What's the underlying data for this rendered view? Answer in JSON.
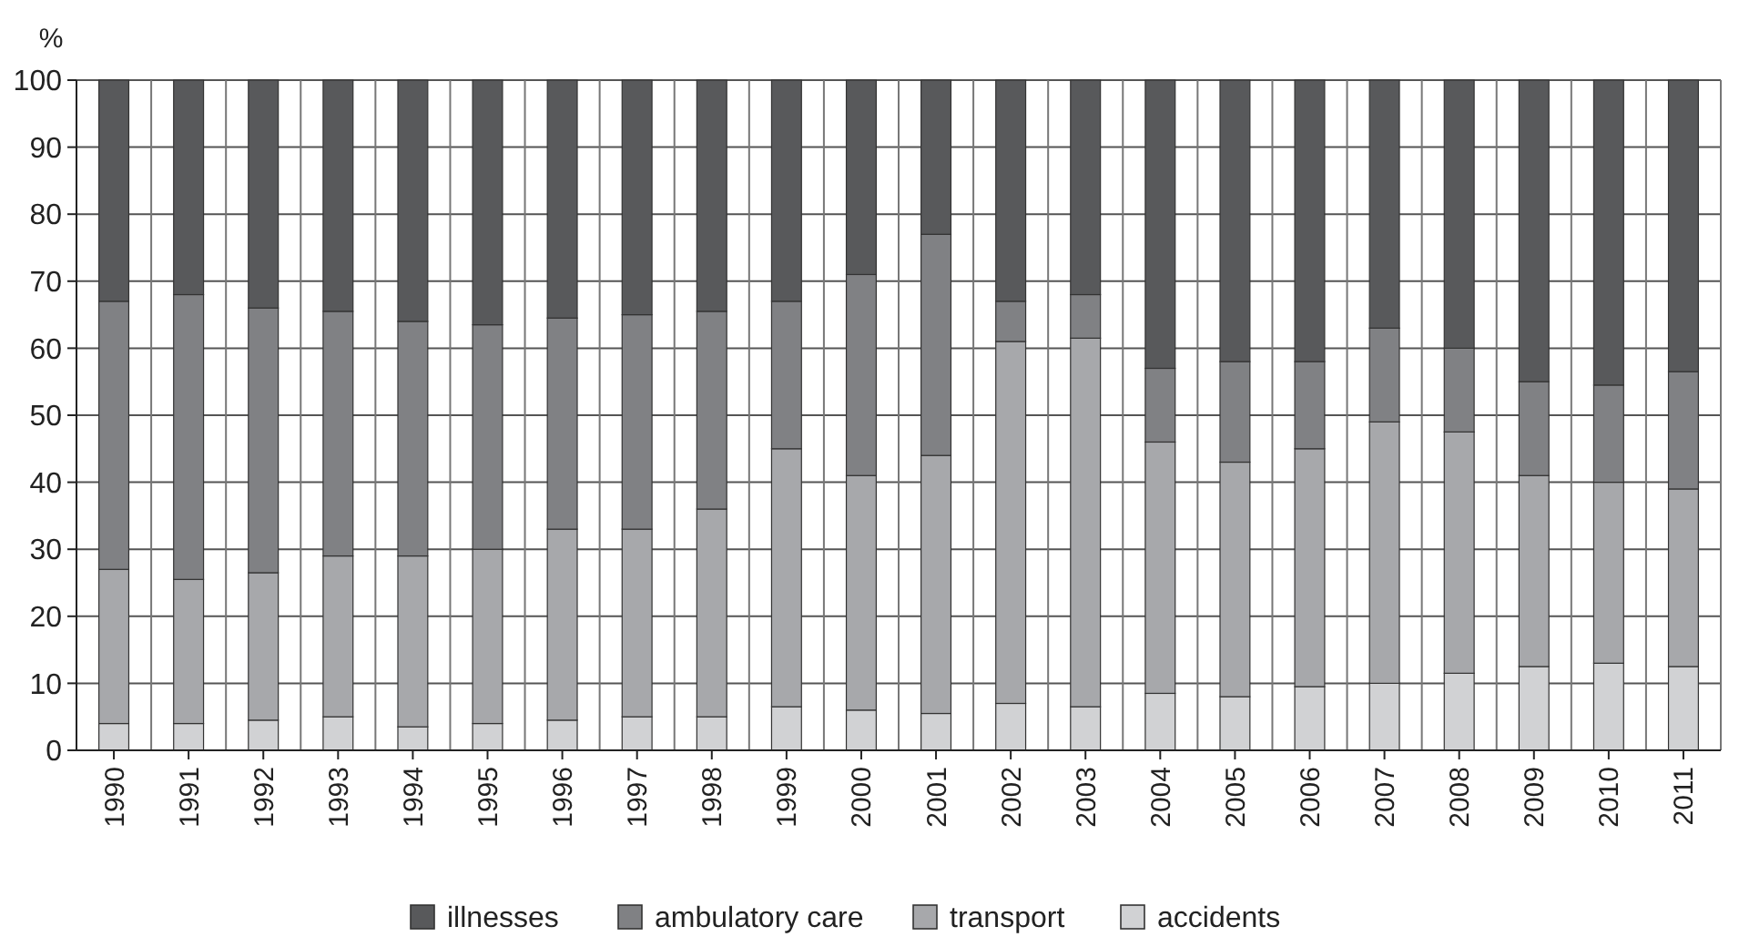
{
  "chart_data": {
    "type": "bar",
    "stacked": true,
    "ylabel": "%",
    "categories": [
      "1990",
      "1991",
      "1992",
      "1993",
      "1994",
      "1995",
      "1996",
      "1997",
      "1998",
      "1999",
      "2000",
      "2001",
      "2002",
      "2003",
      "2004",
      "2005",
      "2006",
      "2007",
      "2008",
      "2009",
      "2010",
      "2011"
    ],
    "series": [
      {
        "name": "accidents",
        "color": "#d1d2d4",
        "values": [
          4,
          4,
          4.5,
          5,
          3.5,
          4,
          4.5,
          5,
          5,
          6.5,
          6,
          5.5,
          7,
          6.5,
          8.5,
          8,
          9.5,
          10,
          11.5,
          12.5,
          13,
          12.5
        ]
      },
      {
        "name": "transport",
        "color": "#a7a8ab",
        "values": [
          23,
          21.5,
          22,
          24,
          25.5,
          26,
          28.5,
          28,
          31,
          38.5,
          35,
          38.5,
          54,
          55,
          37.5,
          35,
          35.5,
          39,
          36,
          28.5,
          27,
          26.5
        ]
      },
      {
        "name": "ambulatory care",
        "color": "#808184",
        "values": [
          40,
          42.5,
          39.5,
          36.5,
          35,
          33.5,
          31.5,
          32,
          29.5,
          22,
          30,
          33,
          6,
          6.5,
          11,
          15,
          13,
          14,
          12.5,
          14,
          14.5,
          17.5
        ]
      },
      {
        "name": "illnesses",
        "color": "#58595b",
        "values": [
          33,
          32,
          34,
          34.5,
          36,
          36.5,
          35.5,
          35,
          34.5,
          33,
          29,
          23,
          33,
          32,
          43,
          42,
          42,
          37,
          40,
          45,
          45.5,
          43.5
        ]
      }
    ],
    "ylim": [
      0,
      100
    ],
    "yticks": [
      0,
      10,
      20,
      30,
      40,
      50,
      60,
      70,
      80,
      90,
      100
    ],
    "grid": true,
    "legend": "bottom"
  }
}
